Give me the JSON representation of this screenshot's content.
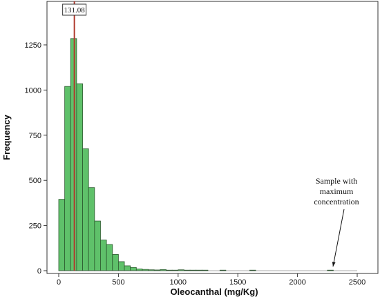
{
  "chart_data": {
    "type": "bar",
    "xlabel": "Oleocanthal (mg/Kg)",
    "ylabel": "Frequency",
    "xlim": [
      -100,
      2550
    ],
    "ylim": [
      0,
      1400
    ],
    "xticks": [
      0,
      500,
      1000,
      1500,
      2000,
      2500
    ],
    "yticks": [
      0,
      250,
      500,
      750,
      1000,
      1250
    ],
    "bin_width": 50,
    "bins": [
      {
        "x0": 0,
        "x1": 50,
        "value": 395
      },
      {
        "x0": 50,
        "x1": 100,
        "value": 1020
      },
      {
        "x0": 100,
        "x1": 150,
        "value": 1285
      },
      {
        "x0": 150,
        "x1": 200,
        "value": 1035
      },
      {
        "x0": 200,
        "x1": 250,
        "value": 675
      },
      {
        "x0": 250,
        "x1": 300,
        "value": 460
      },
      {
        "x0": 300,
        "x1": 350,
        "value": 275
      },
      {
        "x0": 350,
        "x1": 400,
        "value": 170
      },
      {
        "x0": 400,
        "x1": 450,
        "value": 145
      },
      {
        "x0": 450,
        "x1": 500,
        "value": 90
      },
      {
        "x0": 500,
        "x1": 550,
        "value": 50
      },
      {
        "x0": 550,
        "x1": 600,
        "value": 27
      },
      {
        "x0": 600,
        "x1": 650,
        "value": 18
      },
      {
        "x0": 650,
        "x1": 700,
        "value": 10
      },
      {
        "x0": 700,
        "x1": 750,
        "value": 7
      },
      {
        "x0": 750,
        "x1": 800,
        "value": 5
      },
      {
        "x0": 800,
        "x1": 850,
        "value": 4
      },
      {
        "x0": 850,
        "x1": 900,
        "value": 6
      },
      {
        "x0": 900,
        "x1": 950,
        "value": 3
      },
      {
        "x0": 950,
        "x1": 1000,
        "value": 2
      },
      {
        "x0": 1000,
        "x1": 1050,
        "value": 5
      },
      {
        "x0": 1050,
        "x1": 1100,
        "value": 1
      },
      {
        "x0": 1100,
        "x1": 1150,
        "value": 1
      },
      {
        "x0": 1150,
        "x1": 1200,
        "value": 1
      },
      {
        "x0": 1200,
        "x1": 1250,
        "value": 2
      },
      {
        "x0": 1350,
        "x1": 1400,
        "value": 1
      },
      {
        "x0": 1600,
        "x1": 1650,
        "value": 1
      },
      {
        "x0": 2250,
        "x1": 2300,
        "value": 1
      }
    ],
    "reference_line": {
      "value": 131.08,
      "label": "131.08",
      "color": "#b03a2e"
    },
    "annotation": {
      "lines": [
        "Sample with",
        "maximum",
        "concentration"
      ],
      "target_x": 2280
    },
    "colors": {
      "bar_fill": "#5fc16a",
      "bar_stroke": "#2d5a2f",
      "frame": "#333333"
    }
  }
}
